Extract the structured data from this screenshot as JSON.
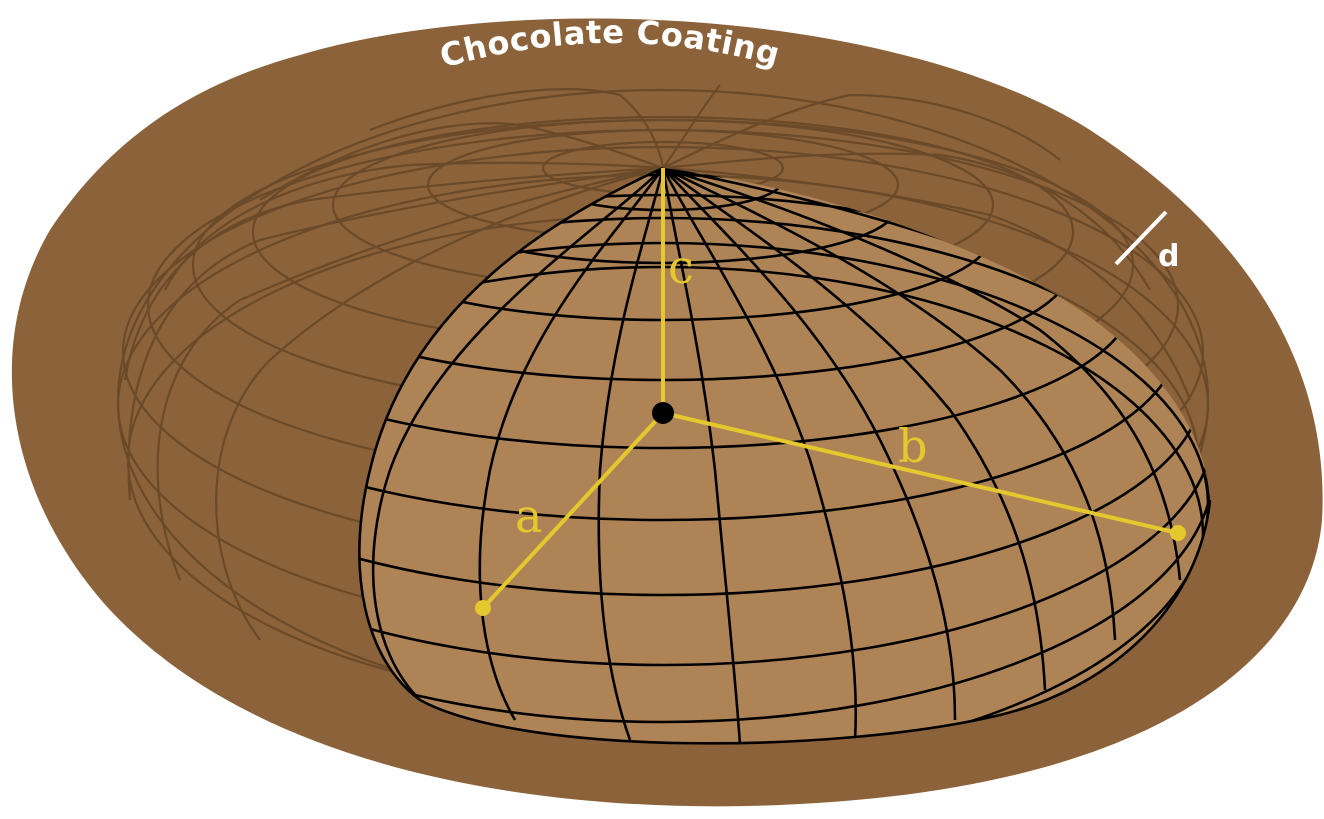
{
  "diagram": {
    "title": "Chocolate Coating",
    "labels": {
      "a": "a",
      "b": "b",
      "c": "c",
      "d": "d"
    },
    "colors": {
      "coating": "#8b6239",
      "ellipsoid_fill": "#ae8456",
      "back_grid": "#6b4a2a",
      "front_grid": "#000000",
      "axis_lines": "#e5c82e",
      "thickness_marker": "#ffffff",
      "center_point": "#000000"
    }
  }
}
